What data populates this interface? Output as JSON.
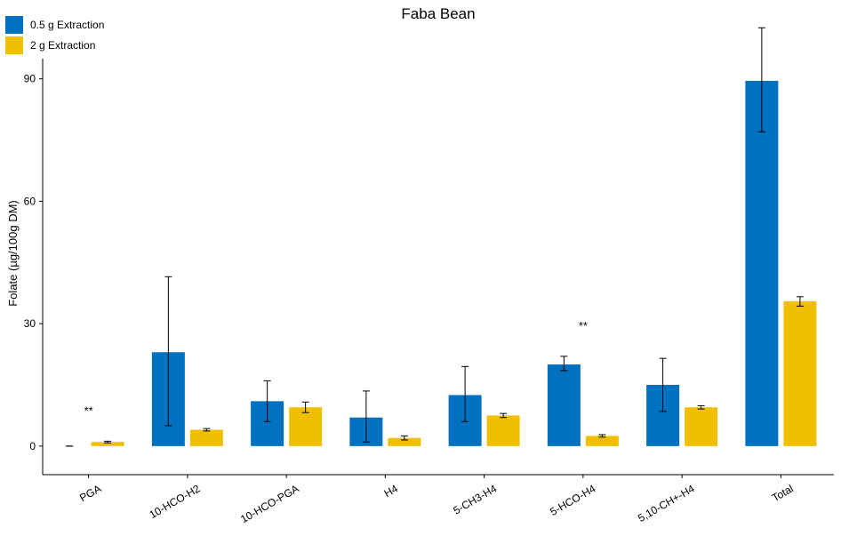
{
  "chart_data": {
    "type": "bar",
    "title": "Faba Bean",
    "xlabel": "",
    "ylabel": "Folate (µg/100g DM)",
    "ylim": [
      -7,
      108
    ],
    "yticks": [
      0,
      30,
      60,
      90
    ],
    "ytick_labels": [
      "0",
      "30",
      "60",
      "90"
    ],
    "categories": [
      "PGA",
      "10-HCO-H2",
      "10-HCO-PGA",
      "H4",
      "5-CH3-H4",
      "5-HCO-H4",
      "5,10-CH+-H4",
      "Total"
    ],
    "series": [
      {
        "name": "0.5 g Extraction",
        "color": "#0070C0",
        "values": [
          0,
          23,
          11,
          7,
          12.5,
          20,
          15,
          89.5
        ],
        "error_low": [
          0,
          5,
          6,
          1,
          6,
          18.5,
          8.5,
          77
        ],
        "error_high": [
          0,
          41.5,
          16,
          13.5,
          19.5,
          22,
          21.5,
          102.5
        ]
      },
      {
        "name": "2 g Extraction",
        "color": "#F0C000",
        "values": [
          1,
          4,
          9.5,
          2,
          7.5,
          2.5,
          9.5,
          35.5
        ],
        "error_low": [
          0.8,
          3.7,
          8.2,
          1.5,
          7,
          2.2,
          9.1,
          34.3
        ],
        "error_high": [
          1.2,
          4.3,
          10.8,
          2.5,
          8,
          2.8,
          9.9,
          36.6
        ]
      }
    ],
    "annotations": [
      "**",
      "",
      "",
      "",
      "",
      "**",
      "",
      "*"
    ],
    "legend_position": "top-left",
    "grid": false
  }
}
